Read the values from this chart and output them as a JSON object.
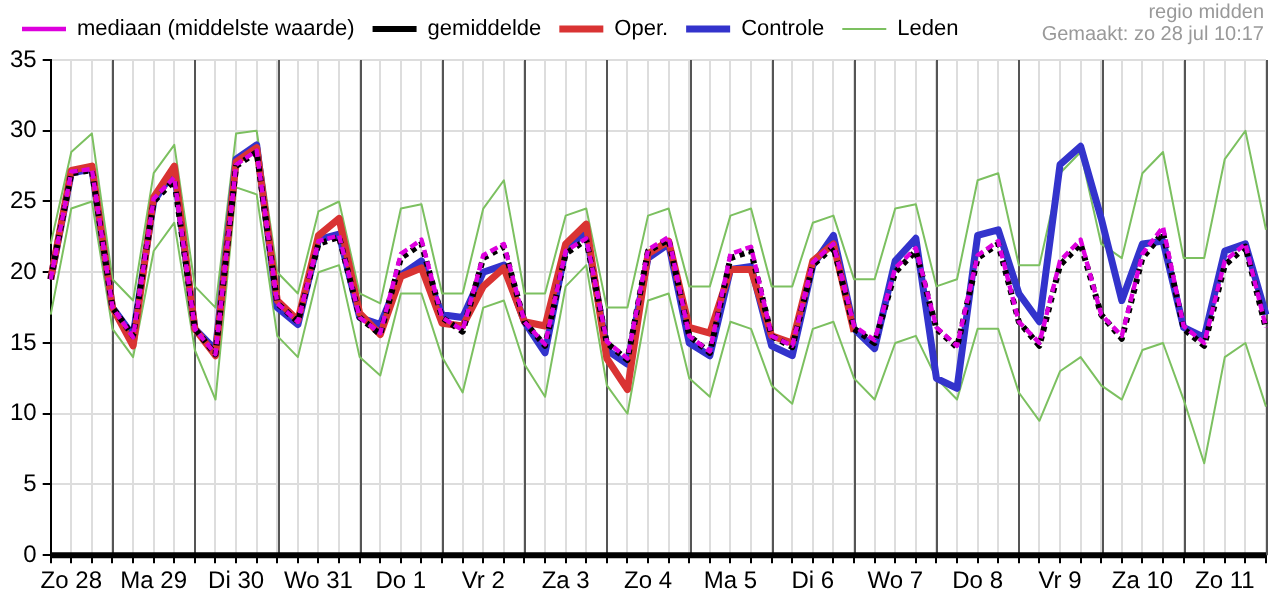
{
  "chart_data": {
    "type": "line",
    "annotations": [
      "regio midden",
      "Gemaakt: zo 28 jul 10:17"
    ],
    "categories": [
      null,
      "Zo 28",
      null,
      null,
      null,
      "Ma 29",
      null,
      null,
      null,
      "Di 30",
      null,
      null,
      null,
      "Wo 31",
      null,
      null,
      null,
      "Do 1",
      null,
      null,
      null,
      "Vr 2",
      null,
      null,
      null,
      "Za 3",
      null,
      null,
      null,
      "Zo 4",
      null,
      null,
      null,
      "Ma 5",
      null,
      null,
      null,
      "Di 6",
      null,
      null,
      null,
      "Wo 7",
      null,
      null,
      null,
      "Do 8",
      null,
      null,
      null,
      "Vr 9",
      null,
      null,
      null,
      "Za 10",
      null,
      null,
      null,
      "Zo 11",
      null,
      null
    ],
    "ylim": [
      0,
      35
    ],
    "yticks": [
      0,
      5,
      10,
      15,
      20,
      25,
      30,
      35
    ],
    "grid": true,
    "legend": "top",
    "series": [
      {
        "name": "Oper.",
        "color": "#d93333",
        "values": [
          19.5,
          27.2,
          27.5,
          17.5,
          14.8,
          25.3,
          27.5,
          16,
          14.1,
          27.8,
          28.8,
          18,
          16.6,
          22.6,
          23.8,
          17.1,
          15.6,
          19.7,
          20.3,
          16.4,
          16.2,
          19,
          20.3,
          16.5,
          16.2,
          22,
          23.4,
          13.9,
          11.7,
          21.3,
          22.2,
          16.1,
          15.7,
          20.2,
          20.2,
          15.5,
          15,
          20.8,
          22,
          15.8,
          null,
          null,
          null,
          null,
          null,
          null,
          null,
          null,
          null,
          null,
          null,
          null,
          null,
          null,
          null,
          null,
          null,
          null,
          null,
          null
        ]
      },
      {
        "name": "Controle",
        "color": "#3333cc",
        "values": [
          19.5,
          27,
          27.3,
          17.5,
          15.5,
          25,
          27.2,
          16,
          14.5,
          28,
          29,
          17.5,
          16.3,
          22.3,
          22.7,
          16.8,
          16.3,
          19.8,
          20.8,
          17,
          16.8,
          20,
          20.5,
          16.5,
          14.3,
          21.7,
          22.8,
          14.5,
          13.5,
          21,
          22,
          15,
          14.1,
          20.2,
          20.4,
          14.8,
          14.1,
          20.5,
          22.6,
          16,
          14.6,
          20.8,
          22.4,
          12.5,
          11.8,
          22.6,
          23,
          18.5,
          16.5,
          27.6,
          28.9,
          23.8,
          18,
          22,
          22.2,
          16.1,
          15.4,
          21.5,
          22,
          17
        ]
      },
      {
        "name": "Leden",
        "color": "#7cc060",
        "values": [
          22,
          28.5,
          29.8,
          19.5,
          18,
          27,
          29,
          19,
          17.5,
          29.8,
          30,
          20,
          18.5,
          24.3,
          25,
          18.5,
          17.8,
          24.5,
          24.8,
          18.5,
          18.5,
          24.5,
          26.5,
          18.5,
          18.5,
          24,
          24.5,
          17.5,
          17.5,
          24,
          24.5,
          19,
          19,
          24,
          24.5,
          19,
          19,
          23.5,
          24,
          19.5,
          19.5,
          24.5,
          24.8,
          19,
          19.5,
          26.5,
          27,
          20.5,
          20.5,
          27,
          28.5,
          22,
          21,
          27,
          28.5,
          21,
          21,
          28,
          30,
          23
        ]
      },
      {
        "color": "#7cc060",
        "values": [
          17,
          24.5,
          25,
          16,
          14,
          21.5,
          23.5,
          14.5,
          11,
          26,
          25.5,
          15.5,
          14,
          20,
          20.5,
          14,
          12.7,
          18.5,
          18.5,
          14,
          11.5,
          17.5,
          18,
          13.5,
          11.2,
          19,
          20.5,
          12,
          10,
          18,
          18.5,
          12.5,
          11.2,
          16.5,
          16,
          12,
          10.7,
          16,
          16.5,
          12.5,
          11,
          15,
          15.5,
          12.5,
          11,
          16,
          16,
          11.5,
          9.5,
          13,
          14,
          12,
          11,
          14.5,
          15,
          11,
          6.5,
          14,
          15,
          10.5
        ]
      },
      {
        "name": "gemiddelde",
        "color": "#000000",
        "line_style": "dotted",
        "values": [
          19.5,
          27,
          27.2,
          17.5,
          15.5,
          25,
          26.5,
          16,
          14.2,
          27.5,
          28.5,
          17.8,
          16.5,
          22,
          22.5,
          16.8,
          15.6,
          21,
          22,
          16.8,
          15.8,
          21,
          21.8,
          16.5,
          14.8,
          21.3,
          22.3,
          15,
          13.8,
          21.5,
          22.3,
          15.5,
          14.3,
          21,
          21.5,
          15.5,
          14.7,
          20.5,
          21.8,
          16,
          15,
          20,
          21.5,
          16,
          14.7,
          21,
          22,
          16.5,
          14.8,
          20.5,
          22,
          17,
          15.3,
          21,
          22.8,
          16,
          14.8,
          20.5,
          21.8,
          16
        ]
      },
      {
        "name": "mediaan (middelste waarde)",
        "color": "#dd00dd",
        "line_style": "dashed",
        "values": [
          19.5,
          27.1,
          27.3,
          17.5,
          15.4,
          25.2,
          26.7,
          16,
          14.2,
          27.6,
          28.6,
          17.8,
          16.5,
          22.2,
          22.6,
          16.8,
          15.7,
          21.3,
          22.3,
          16.8,
          15.9,
          21.2,
          22,
          16.5,
          14.9,
          21.5,
          22.4,
          15.1,
          13.9,
          21.6,
          22.5,
          15.5,
          14.4,
          21.3,
          21.8,
          15.5,
          14.8,
          20.7,
          22,
          16.2,
          15.2,
          20.3,
          21.7,
          16.1,
          14.8,
          21.2,
          22.2,
          16.5,
          15,
          20.8,
          22.3,
          17,
          15.5,
          21.3,
          23.2,
          16.2,
          15,
          20.8,
          22,
          16.1
        ]
      }
    ]
  }
}
